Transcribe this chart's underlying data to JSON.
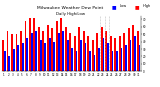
{
  "title": "Milwaukee Weather Dew Point",
  "subtitle": "Daily High/Low",
  "high_color": "#ff0000",
  "low_color": "#0000ff",
  "background_color": "#ffffff",
  "ylim": [
    0,
    75
  ],
  "days": [
    1,
    2,
    3,
    4,
    5,
    6,
    7,
    8,
    9,
    10,
    11,
    12,
    13,
    14,
    15,
    16,
    17,
    18,
    19,
    20,
    21,
    22,
    23,
    24,
    25,
    26,
    27,
    28,
    29,
    30,
    31
  ],
  "high": [
    42,
    55,
    50,
    50,
    55,
    68,
    72,
    72,
    60,
    55,
    62,
    58,
    68,
    72,
    60,
    52,
    48,
    60,
    55,
    48,
    42,
    52,
    60,
    55,
    48,
    45,
    48,
    52,
    58,
    62,
    55
  ],
  "low": [
    28,
    20,
    30,
    35,
    38,
    45,
    52,
    55,
    42,
    38,
    45,
    40,
    52,
    55,
    42,
    32,
    28,
    42,
    38,
    28,
    22,
    32,
    45,
    38,
    28,
    28,
    32,
    35,
    42,
    48,
    35
  ],
  "bar_width": 0.4,
  "dashed_vlines": [
    22.5,
    23.5,
    24.5
  ],
  "legend_high": "High",
  "legend_low": "Low",
  "yticks": [
    0,
    10,
    20,
    30,
    40,
    50,
    60,
    70
  ]
}
